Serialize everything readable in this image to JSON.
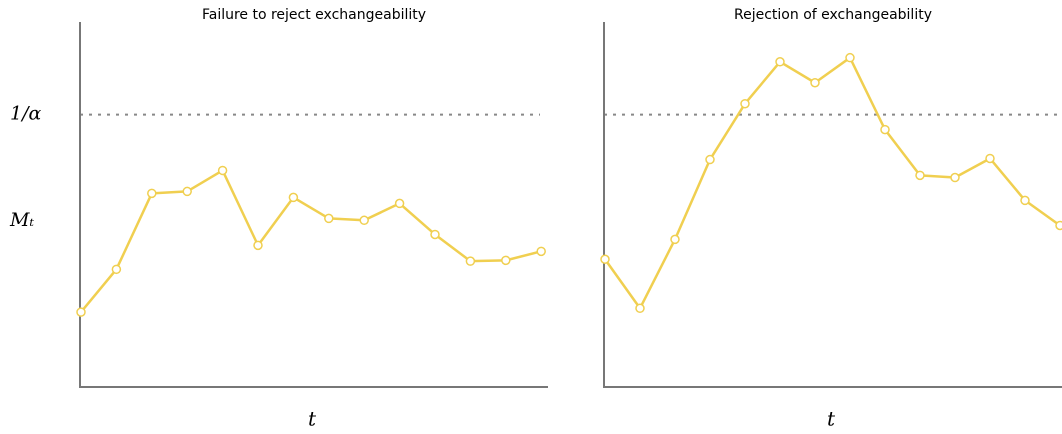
{
  "chart_data": [
    {
      "type": "line",
      "title": "Failure to reject exchangeability",
      "xlabel": "t",
      "categories": [
        null,
        null,
        null,
        null,
        null,
        null,
        null,
        null,
        null,
        null,
        null,
        null,
        null,
        null
      ],
      "series": [
        {
          "color": "#f0cf50",
          "values": [
            27.5,
            43.2,
            71.1,
            71.8,
            79.5,
            52.0,
            69.6,
            61.9,
            61.2,
            67.4,
            56.0,
            46.2,
            46.5,
            49.8
          ]
        }
      ],
      "ylim": [
        0,
        134
      ],
      "yticks": [
        {
          "value": 100,
          "label": "1/α"
        },
        {
          "value": 61,
          "label": "Mₜ"
        }
      ],
      "reference_line": 100
    },
    {
      "type": "line",
      "title": "Rejection of exchangeability",
      "xlabel": "t",
      "categories": [
        null,
        null,
        null,
        null,
        null,
        null,
        null,
        null,
        null,
        null,
        null,
        null,
        null,
        null
      ],
      "series": [
        {
          "color": "#f0cf50",
          "values": [
            46.9,
            28.9,
            54.2,
            83.5,
            104.0,
            119.4,
            111.7,
            120.9,
            94.5,
            77.7,
            76.9,
            83.9,
            68.5,
            59.3
          ]
        }
      ],
      "ylim": [
        0,
        134
      ],
      "reference_line": 100
    }
  ]
}
